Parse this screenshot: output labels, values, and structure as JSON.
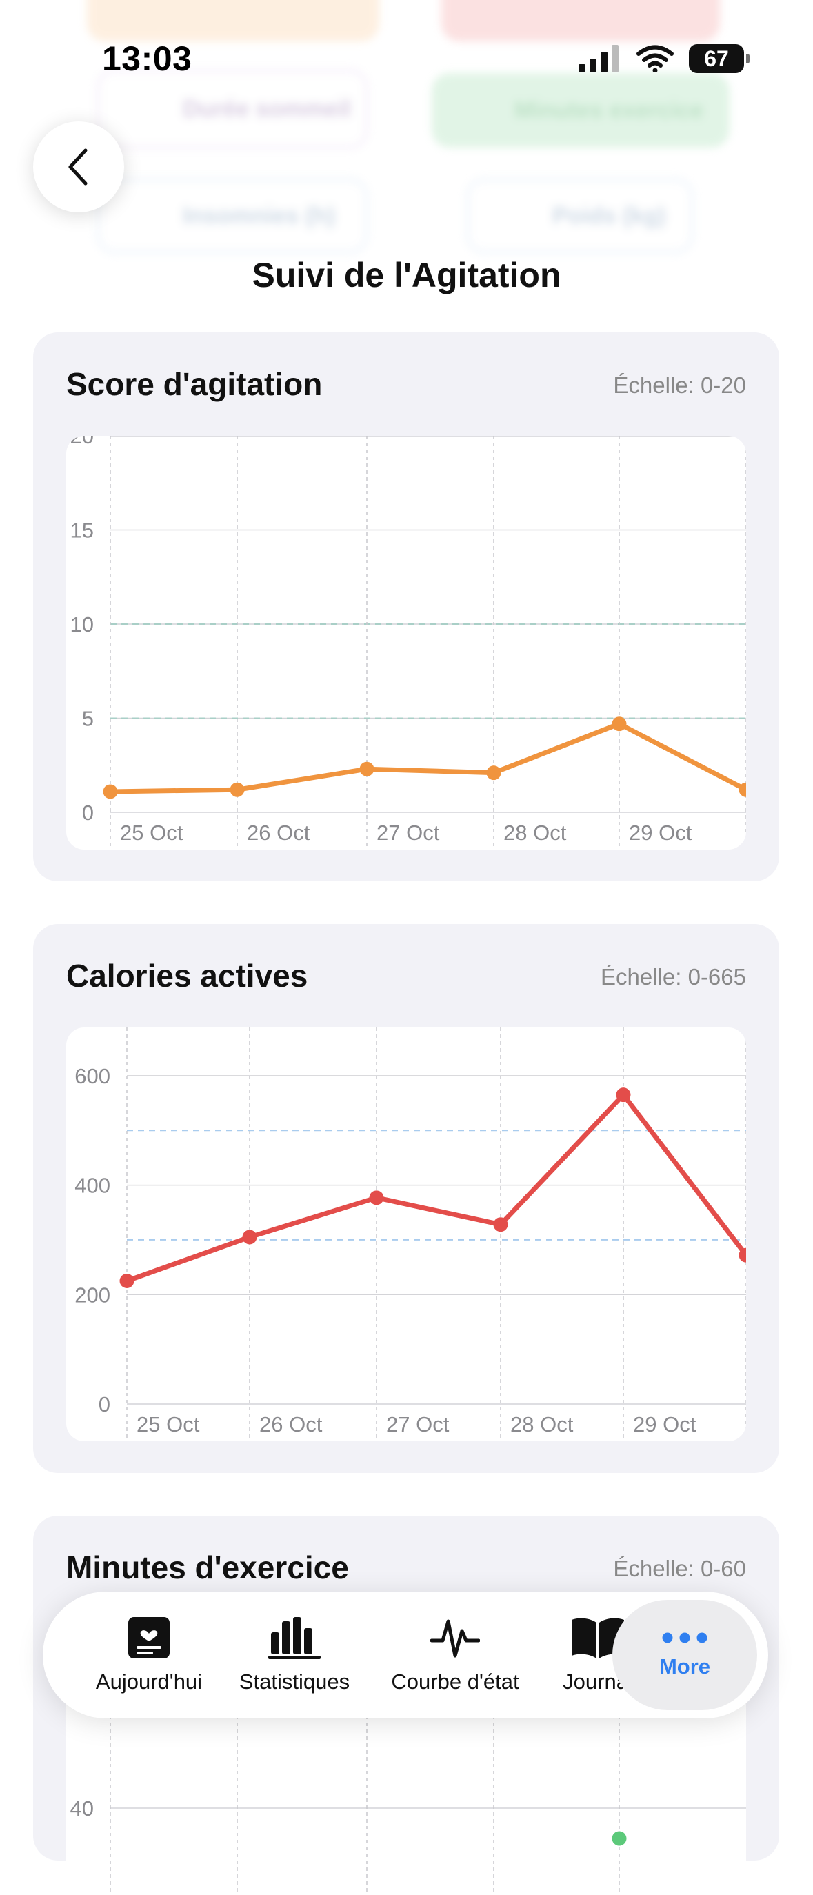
{
  "status_bar": {
    "time": "13:03",
    "battery": "67"
  },
  "background_shortcuts": [
    "Durée sommeil",
    "Minutes exercice",
    "Insomnies (h)",
    "Poids (kg)"
  ],
  "page": {
    "title": "Suivi de l'Agitation"
  },
  "cards": [
    {
      "title": "Score d'agitation",
      "scale": "Échelle: 0-20"
    },
    {
      "title": "Calories actives",
      "scale": "Échelle: 0-665"
    },
    {
      "title": "Minutes d'exercice",
      "scale": "Échelle: 0-60"
    }
  ],
  "chart_data": [
    {
      "type": "line",
      "title": "Score d'agitation",
      "categories": [
        "25 Oct",
        "26 Oct",
        "27 Oct",
        "28 Oct",
        "29 Oct",
        ""
      ],
      "series": [
        {
          "values": [
            1.1,
            1.2,
            2.3,
            2.1,
            4.7,
            1.2
          ]
        }
      ],
      "ylim": [
        0,
        20
      ],
      "yticks": [
        0,
        5,
        10,
        15,
        20
      ],
      "reference_lines": [
        5,
        10
      ],
      "grid": true,
      "color": "#f0943e"
    },
    {
      "type": "line",
      "title": "Calories actives",
      "categories": [
        "25 Oct",
        "26 Oct",
        "27 Oct",
        "28 Oct",
        "29 Oct",
        ""
      ],
      "series": [
        {
          "values": [
            225,
            305,
            377,
            328,
            565,
            272
          ]
        }
      ],
      "ylim": [
        0,
        620
      ],
      "yticks": [
        0,
        200,
        400,
        600
      ],
      "reference_lines": [
        300,
        500
      ],
      "grid": true,
      "color": "#e34d4a"
    },
    {
      "type": "line",
      "title": "Minutes d'exercice",
      "yticks": [
        40
      ],
      "ylim": [
        0,
        60
      ],
      "color": "#5cc97a"
    }
  ],
  "tab_bar": {
    "items": [
      {
        "label": "Aujourd'hui",
        "icon": "today-card-icon"
      },
      {
        "label": "Statistiques",
        "icon": "bar-chart-icon"
      },
      {
        "label": "Courbe d'état",
        "icon": "waveform-icon"
      },
      {
        "label": "Journal",
        "icon": "book-icon"
      },
      {
        "label": "More",
        "icon": "ellipsis-icon"
      }
    ],
    "active_index": 4,
    "accent": "#2f7ff0"
  }
}
